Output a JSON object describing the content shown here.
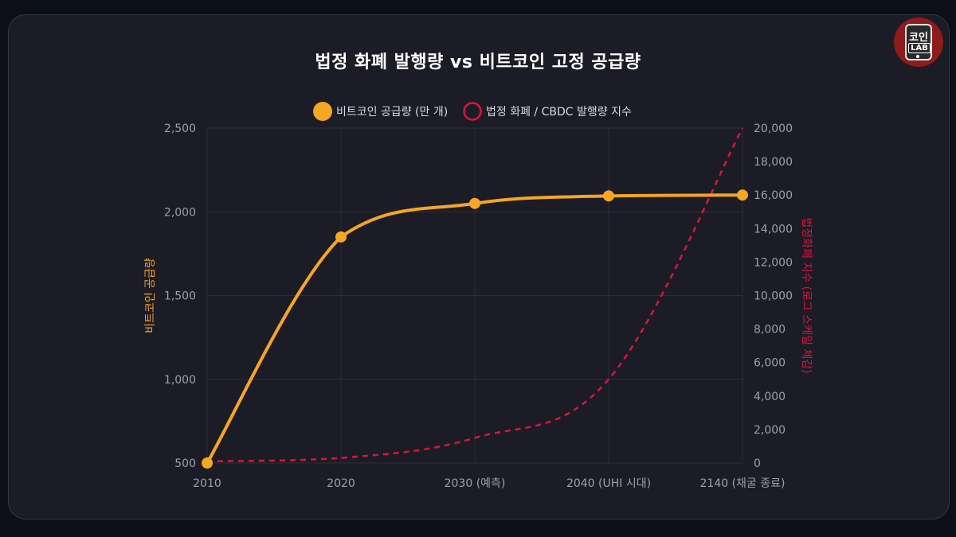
{
  "header": {
    "title": "법정 화폐 발행량 vs 비트코인 고정 공급량"
  },
  "logo": {
    "line1": "코인",
    "line2": "LAB"
  },
  "colors": {
    "bitcoin": "#f5a623",
    "fiat": "#dc143c",
    "grid": "#2e2e3a",
    "tick": "#9aa0ad",
    "background": "#1c1c26"
  },
  "chart_data": {
    "type": "line",
    "categories": [
      "2010",
      "2020",
      "2030 (예측)",
      "2040 (UHI 시대)",
      "2140 (채굴 종료)"
    ],
    "legend_position": "top-center",
    "grid": true,
    "y_left": {
      "label": "비트코인 공급량",
      "range": [
        500,
        2500
      ],
      "ticks": [
        "500",
        "1,000",
        "1,500",
        "2,000",
        "2,500"
      ],
      "tick_values": [
        500,
        1000,
        1500,
        2000,
        2500
      ]
    },
    "y_right": {
      "label": "법정화폐 지수 (로그 스케일 체감)",
      "range": [
        0,
        20000
      ],
      "ticks": [
        "0",
        "2,000",
        "4,000",
        "6,000",
        "8,000",
        "10,000",
        "12,000",
        "14,000",
        "16,000",
        "18,000",
        "20,000"
      ],
      "tick_values": [
        0,
        2000,
        4000,
        6000,
        8000,
        10000,
        12000,
        14000,
        16000,
        18000,
        20000
      ]
    },
    "series": [
      {
        "name": "비트코인 공급량 (만 개)",
        "axis": "left",
        "style": "solid",
        "values": [
          500,
          1850,
          2050,
          2095,
          2100
        ]
      },
      {
        "name": "법정 화폐 / CBDC 발행량 지수",
        "axis": "right",
        "style": "dashed",
        "values": [
          100,
          300,
          1500,
          5000,
          20000
        ]
      }
    ]
  }
}
